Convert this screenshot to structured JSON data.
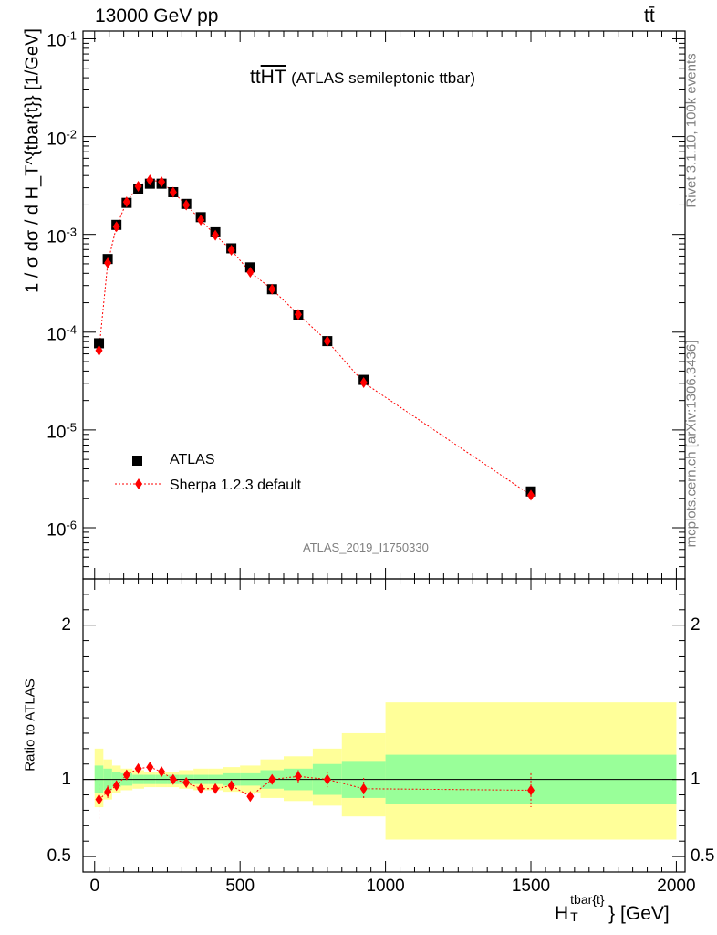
{
  "header": {
    "energy_label": "13000 GeV pp",
    "process_label": "tt̄"
  },
  "side_labels": {
    "rivet": "Rivet 3.1.10,  100k events",
    "mcplots": "mcplots.cern.ch [arXiv:1306.3436]"
  },
  "chart_data": [
    {
      "type": "scatter",
      "panel": "main",
      "title_main": "tt",
      "title_overline": "HT",
      "title_rest": "(ATLAS semileptonic ttbar)",
      "watermark": "ATLAS_2019_I1750330",
      "ylabel": "1 / σ dσ / d H_T^{tbar{t}} [1/GeV]",
      "yscale": "log",
      "ylim": [
        3e-07,
        0.12
      ],
      "xlim": [
        -40,
        2030
      ],
      "y_tick_labels": [
        "10^-6",
        "10^-5",
        "10^-4",
        "10^-3",
        "10^-2",
        "10^-1"
      ],
      "legend_position": "lower-left",
      "series": [
        {
          "name": "ATLAS",
          "color": "#000000",
          "marker": "square",
          "x": [
            15,
            45,
            75,
            110,
            150,
            190,
            230,
            270,
            315,
            365,
            415,
            470,
            535,
            610,
            700,
            800,
            925,
            1500
          ],
          "y": [
            7.7e-05,
            0.00056,
            0.00125,
            0.0021,
            0.0029,
            0.0033,
            0.0033,
            0.0027,
            0.00205,
            0.0015,
            0.00105,
            0.00072,
            0.00046,
            0.000275,
            0.00015,
            8.1e-05,
            3.25e-05,
            2.35e-06
          ]
        },
        {
          "name": "Sherpa 1.2.3 default",
          "color": "#ff0000",
          "marker": "diamond",
          "x": [
            15,
            45,
            75,
            110,
            150,
            190,
            230,
            270,
            315,
            365,
            415,
            470,
            535,
            610,
            700,
            800,
            925,
            1500
          ],
          "y": [
            6.5e-05,
            0.00051,
            0.0012,
            0.00215,
            0.0031,
            0.0036,
            0.00345,
            0.0027,
            0.002,
            0.0014,
            0.00098,
            0.00069,
            0.00041,
            0.000275,
            0.000152,
            8.1e-05,
            3.05e-05,
            2.15e-06
          ]
        }
      ]
    },
    {
      "type": "scatter",
      "panel": "ratio",
      "ylabel": "Ratio to ATLAS",
      "ylim": [
        0.4,
        2.3
      ],
      "xlim": [
        -40,
        2030
      ],
      "xlabel_base": "H",
      "xlabel_sub": "T",
      "xlabel_sup": "tbar{t}",
      "xlabel_unit": "} [GeV]",
      "x_tick_labels": [
        "0",
        "500",
        "1000",
        "1500",
        "2000"
      ],
      "x_ticks": [
        0,
        500,
        1000,
        1500,
        2000
      ],
      "y_tick_labels": [
        "0.5",
        "1",
        "2"
      ],
      "y_ticks": [
        0.5,
        1,
        2
      ],
      "bands": {
        "edges": [
          0,
          30,
          60,
          90,
          130,
          170,
          210,
          250,
          290,
          340,
          390,
          440,
          500,
          570,
          650,
          750,
          850,
          1000,
          2000
        ],
        "stat_lo": [
          0.91,
          0.93,
          0.95,
          0.96,
          0.97,
          0.97,
          0.97,
          0.97,
          0.97,
          0.97,
          0.97,
          0.96,
          0.96,
          0.94,
          0.93,
          0.9,
          0.88,
          0.84
        ],
        "stat_hi": [
          1.09,
          1.07,
          1.05,
          1.04,
          1.03,
          1.03,
          1.03,
          1.03,
          1.03,
          1.03,
          1.03,
          1.04,
          1.04,
          1.06,
          1.07,
          1.1,
          1.12,
          1.16
        ],
        "tot_lo": [
          0.82,
          0.87,
          0.91,
          0.93,
          0.94,
          0.95,
          0.95,
          0.95,
          0.94,
          0.93,
          0.93,
          0.92,
          0.91,
          0.88,
          0.86,
          0.83,
          0.76,
          0.61
        ],
        "tot_hi": [
          1.2,
          1.13,
          1.09,
          1.07,
          1.06,
          1.05,
          1.05,
          1.05,
          1.06,
          1.07,
          1.07,
          1.08,
          1.09,
          1.13,
          1.15,
          1.2,
          1.3,
          1.5
        ],
        "stat_color": "#99ff99",
        "total_color": "#ffff99"
      },
      "series": [
        {
          "name": "Sherpa 1.2.3 default",
          "color": "#ff0000",
          "marker": "diamond",
          "x": [
            15,
            45,
            75,
            110,
            150,
            190,
            230,
            270,
            315,
            365,
            415,
            470,
            535,
            610,
            700,
            800,
            925,
            1500
          ],
          "y": [
            0.87,
            0.92,
            0.96,
            1.03,
            1.07,
            1.08,
            1.05,
            1.0,
            0.98,
            0.94,
            0.94,
            0.96,
            0.89,
            1.0,
            1.02,
            1.0,
            0.94,
            0.93
          ],
          "err_lo": [
            0.13,
            0.04,
            0.03,
            0.02,
            0.02,
            0.02,
            0.02,
            0.02,
            0.02,
            0.02,
            0.02,
            0.02,
            0.03,
            0.03,
            0.04,
            0.05,
            0.07,
            0.11
          ],
          "err_hi": [
            0.1,
            0.04,
            0.03,
            0.02,
            0.02,
            0.02,
            0.02,
            0.02,
            0.02,
            0.02,
            0.02,
            0.02,
            0.03,
            0.03,
            0.04,
            0.05,
            0.07,
            0.11
          ]
        }
      ]
    }
  ]
}
